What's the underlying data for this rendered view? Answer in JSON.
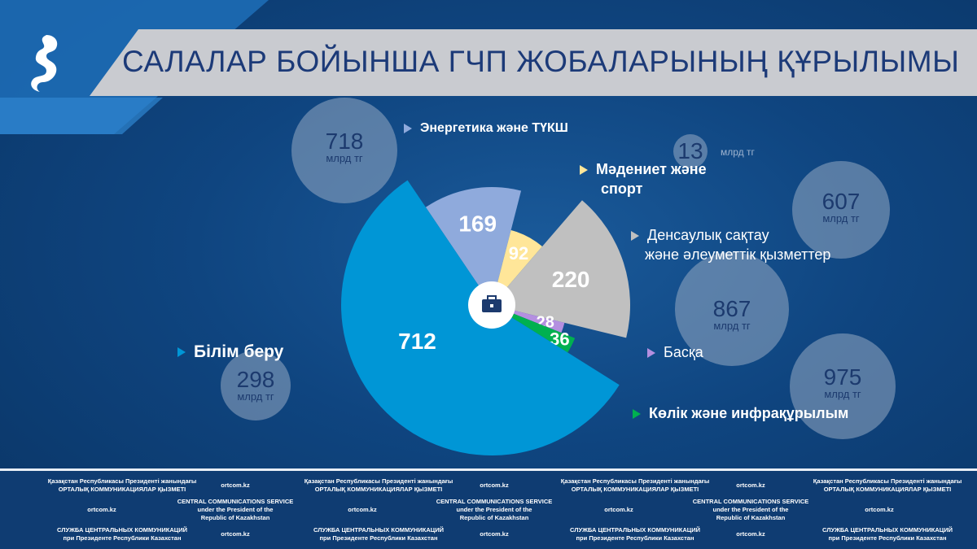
{
  "title": "САЛАЛАР БОЙЫНША ГЧП ЖОБАЛАРЫНЫҢ ҚҰРЫЛЫМЫ",
  "chart_data": {
    "type": "pie",
    "variant": "nightingale-rose",
    "title": "САЛАЛАР БОЙЫНША ГЧП ЖОБАЛАРЫНЫҢ ҚҰРЫЛЫМЫ",
    "center_icon": "briefcase-icon",
    "slices": [
      {
        "name": "Энергетика және ТҮКШ",
        "count": 169,
        "amount": "718",
        "color": "#8faadc"
      },
      {
        "name": "Мәдениет және спорт",
        "count": 92,
        "amount": "13",
        "color": "#ffe699"
      },
      {
        "name": "Денсаулық сақтау және әлеуметтік қызметтер",
        "count": 220,
        "amount": "607",
        "color": "#c0c0c0"
      },
      {
        "name": "Басқа",
        "count": 28,
        "amount": "867",
        "color": "#b48fe0"
      },
      {
        "name": "Көлік және инфрақұрылым",
        "count": 36,
        "amount": "975",
        "color": "#00b050"
      },
      {
        "name": "Білім беру",
        "count": 712,
        "amount": "298",
        "color": "#0096d6"
      }
    ],
    "amount_unit": "млрд тг"
  },
  "legend": {
    "energy": "Энергетика және ТҮКШ",
    "culture1": "Мәдениет және",
    "culture2": "спорт",
    "health1": "Денсаулық сақтау",
    "health2": "және әлеуметтік қызметтер",
    "other": "Басқа",
    "transport": "Көлік және инфрақұрылым",
    "education": "Білім беру"
  },
  "footer": {
    "kz1": "Қазақстан Республикасы Президенті жанындағы",
    "kz2": "ОРТАЛЫҚ КОММУНИКАЦИЯЛАР ҚЫЗМЕТІ",
    "en1": "CENTRAL COMMUNICATIONS SERVICE",
    "en2": "under the President of the",
    "en3": "Republic of Kazakhstan",
    "ru1": "СЛУЖБА ЦЕНТРАЛЬНЫХ КОММУНИКАЦИЙ",
    "ru2": "при Президенте Республики Казахстан",
    "site": "ortcom.kz"
  }
}
